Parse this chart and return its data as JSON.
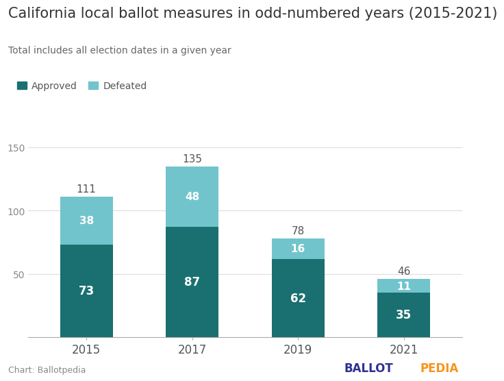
{
  "title": "California local ballot measures in odd-numbered years (2015-2021)",
  "subtitle": "Total includes all election dates in a given year",
  "years": [
    "2015",
    "2017",
    "2019",
    "2021"
  ],
  "approved": [
    73,
    87,
    62,
    35
  ],
  "defeated": [
    38,
    48,
    16,
    11
  ],
  "totals": [
    111,
    135,
    78,
    46
  ],
  "approved_color": "#1a7070",
  "defeated_color": "#72c4cc",
  "approved_label": "Approved",
  "defeated_label": "Defeated",
  "background_color": "#ffffff",
  "title_fontsize": 15,
  "subtitle_fontsize": 10,
  "ylabel_ticks": [
    50,
    100,
    150
  ],
  "ylim": [
    0,
    160
  ],
  "bar_width": 0.5,
  "footer_left": "Chart: Ballotpedia",
  "footer_right_1": "BALLOT",
  "footer_right_2": "PEDIA",
  "footer_color_1": "#2e3191",
  "footer_color_2": "#f7941d"
}
